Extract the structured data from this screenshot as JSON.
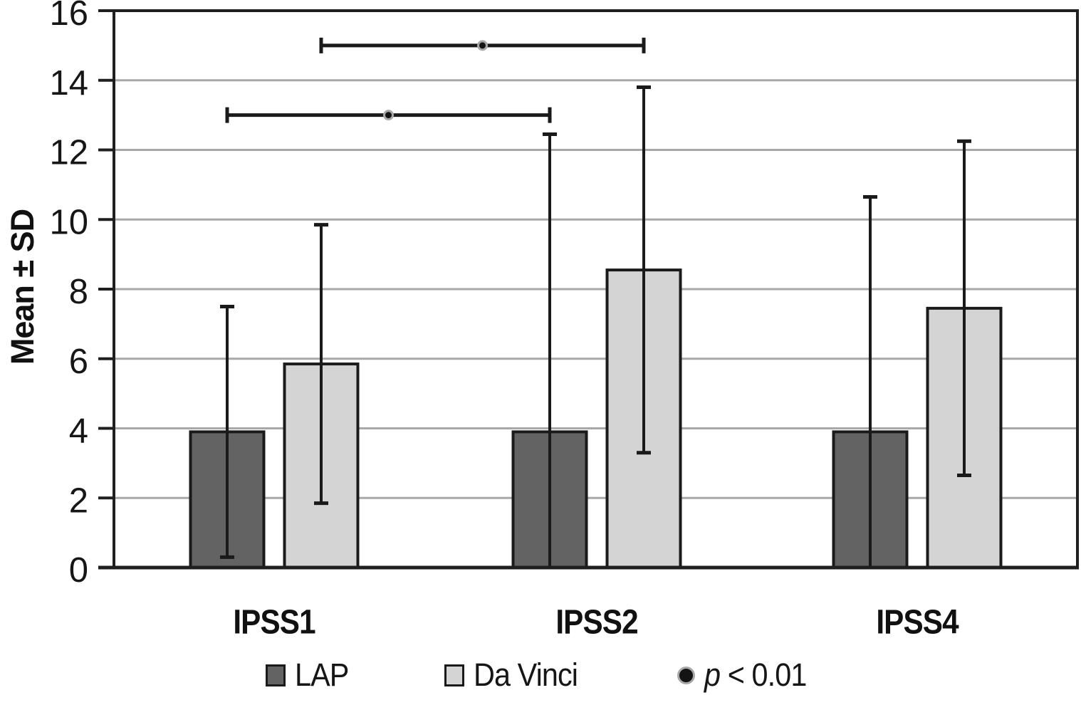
{
  "chart_data": {
    "type": "bar",
    "title": "",
    "xlabel": "",
    "ylabel": "Mean ± SD",
    "categories": [
      "IPSS1",
      "IPSS2",
      "IPSS4"
    ],
    "series": [
      {
        "name": "LAP",
        "color": "#636363",
        "values": [
          3.9,
          3.9,
          3.9
        ],
        "sd": [
          3.6,
          8.55,
          6.75
        ]
      },
      {
        "name": "Da Vinci",
        "color": "#d4d4d4",
        "values": [
          5.85,
          8.55,
          7.45
        ],
        "sd": [
          4.0,
          5.25,
          4.8
        ]
      }
    ],
    "error_bar_style": "mean ± SD whiskers with caps; lower whiskers clipped at 0",
    "ylim": [
      0,
      16
    ],
    "yticks": [
      0,
      2,
      4,
      6,
      8,
      10,
      12,
      14,
      16
    ],
    "grid": true,
    "legend_position": "bottom",
    "significance_brackets": [
      {
        "y": 15,
        "series": "Da Vinci",
        "from_category": "IPSS1",
        "to_category": "IPSS2",
        "label": "p < 0.01"
      },
      {
        "y": 13,
        "series": "LAP",
        "from_category": "IPSS1",
        "to_category": "IPSS2",
        "label": "p < 0.01"
      }
    ],
    "colors": {
      "axis": "#1f1f1f",
      "grid": "#a8a8a8",
      "error": "#1a1a1a",
      "bar_border": "#1a1a1a",
      "marker_fill": "#141414",
      "marker_ring": "#a8a8a8"
    }
  },
  "legend": {
    "items": [
      {
        "label": "LAP",
        "swatch": "dark-square",
        "color": "#636363"
      },
      {
        "label": "Da Vinci",
        "swatch": "light-square",
        "color": "#d4d4d4"
      },
      {
        "label_italic": "p",
        "label_rest": " < 0.01",
        "swatch": "dot"
      }
    ]
  }
}
